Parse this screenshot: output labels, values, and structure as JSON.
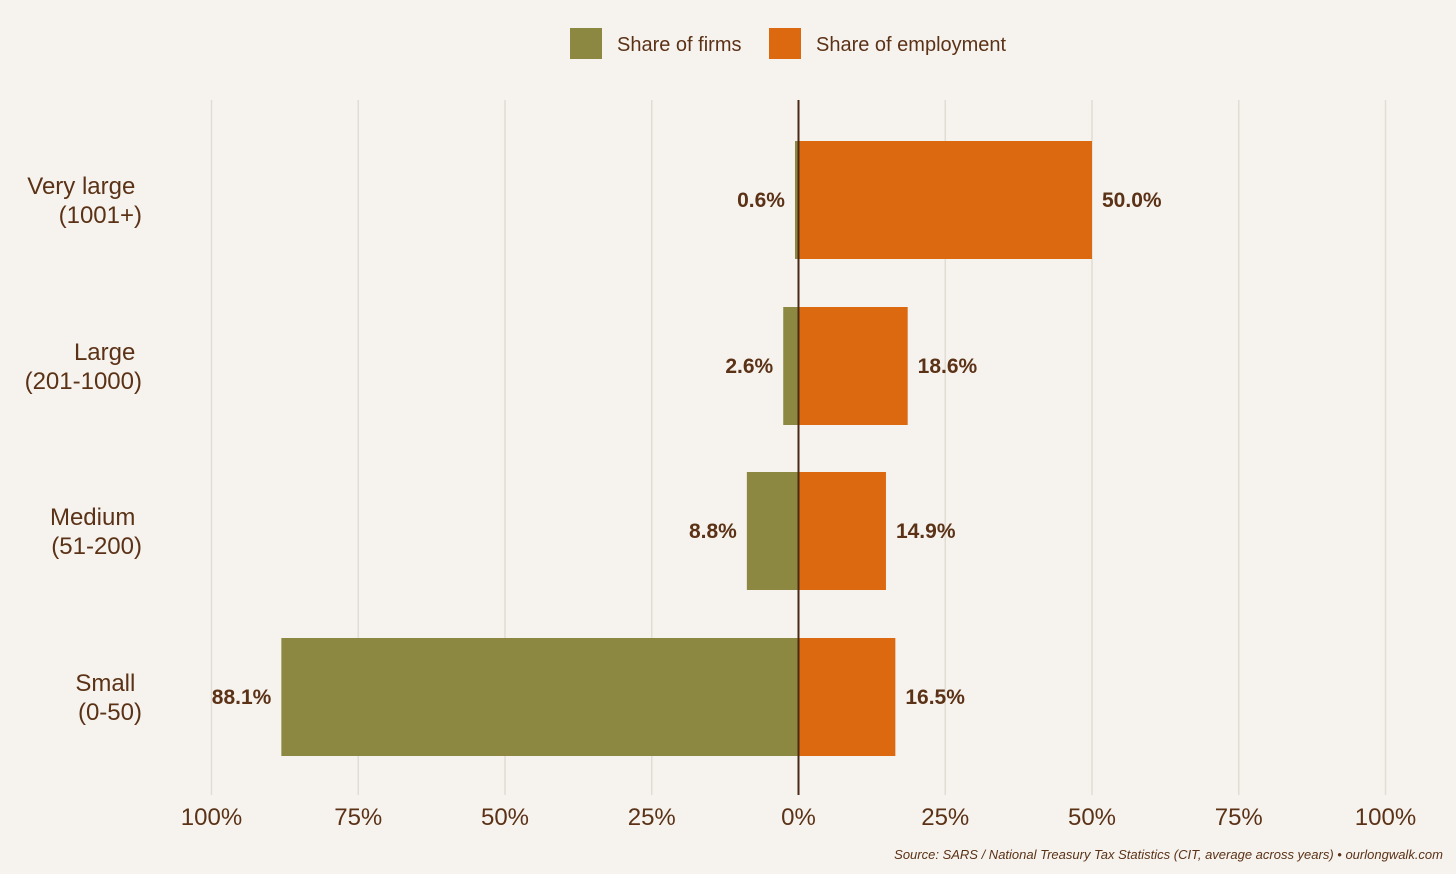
{
  "chart_data": {
    "type": "bar",
    "orientation": "horizontal-diverging",
    "title": "",
    "categories": [
      {
        "line1": "Very large",
        "line2": "(1001+)"
      },
      {
        "line1": "Large",
        "line2": "(201-1000)"
      },
      {
        "line1": "Medium",
        "line2": "(51-200)"
      },
      {
        "line1": "Small",
        "line2": "(0-50)"
      }
    ],
    "series": [
      {
        "name": "Share of firms",
        "color": "#8c8842",
        "direction": "left",
        "values": [
          0.6,
          2.6,
          8.8,
          88.1
        ],
        "labels": [
          "0.6%",
          "2.6%",
          "8.8%",
          "88.1%"
        ]
      },
      {
        "name": "Share of employment",
        "color": "#dc6810",
        "direction": "right",
        "values": [
          50.0,
          18.6,
          14.9,
          16.5
        ],
        "labels": [
          "50.0%",
          "18.6%",
          "14.9%",
          "16.5%"
        ]
      }
    ],
    "xlim": [
      -100,
      100
    ],
    "xticks": [
      -100,
      -75,
      -50,
      -25,
      0,
      25,
      50,
      75,
      100
    ],
    "xtick_labels": [
      "100%",
      "75%",
      "50%",
      "25%",
      "0%",
      "25%",
      "50%",
      "75%",
      "100%"
    ],
    "grid": true,
    "legend_position": "top-center",
    "source": "Source: SARS / National Treasury Tax Statistics (CIT, average across years) • ourlongwalk.com",
    "colors": {
      "background": "#f6f3ef",
      "grid": "#e0ddd3",
      "text": "#5b3216",
      "zero_line": "#4a2a14"
    }
  }
}
